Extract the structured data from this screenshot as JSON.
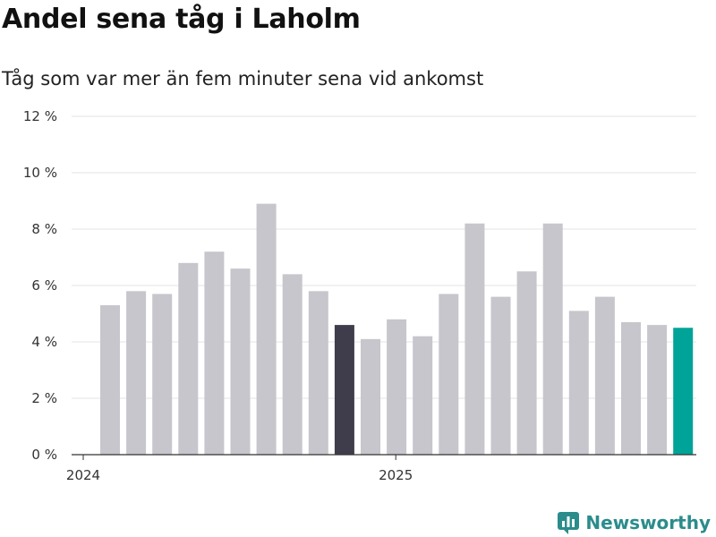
{
  "chart_data": {
    "type": "bar",
    "title": "Andel sena tåg i Laholm",
    "subtitle": "Tåg som var mer än fem minuter sena vid ankomst",
    "xlabel": "",
    "ylabel": "",
    "ylim": [
      0,
      12
    ],
    "yticks": [
      0,
      2,
      4,
      6,
      8,
      10,
      12
    ],
    "ytick_labels": [
      "0 %",
      "2 %",
      "4 %",
      "6 %",
      "8 %",
      "10 %",
      "12 %"
    ],
    "xtick_labels": [
      {
        "label": "2024",
        "index": 0
      },
      {
        "label": "2025",
        "index": 12
      }
    ],
    "categories": [
      "2024-01",
      "2024-02",
      "2024-03",
      "2024-04",
      "2024-05",
      "2024-06",
      "2024-07",
      "2024-08",
      "2024-09",
      "2024-10",
      "2024-11",
      "2024-12",
      "2025-01",
      "2025-02",
      "2025-03",
      "2025-04",
      "2025-05",
      "2025-06",
      "2025-07",
      "2025-08",
      "2025-09",
      "2025-10",
      "2025-11"
    ],
    "values": [
      5.3,
      5.8,
      5.7,
      6.8,
      7.2,
      6.6,
      8.9,
      6.4,
      5.8,
      4.6,
      4.1,
      4.8,
      4.2,
      5.7,
      8.2,
      5.6,
      6.5,
      8.2,
      5.1,
      5.6,
      4.7,
      4.6,
      4.5
    ],
    "highlights": [
      {
        "index": 9,
        "color": "#3f3d4b"
      },
      {
        "index": 22,
        "color": "#00a398"
      }
    ],
    "default_color": "#c6c6cc",
    "grid": true
  },
  "branding": {
    "logo_text": "Newsworthy",
    "logo_color": "#2b8c8c"
  }
}
